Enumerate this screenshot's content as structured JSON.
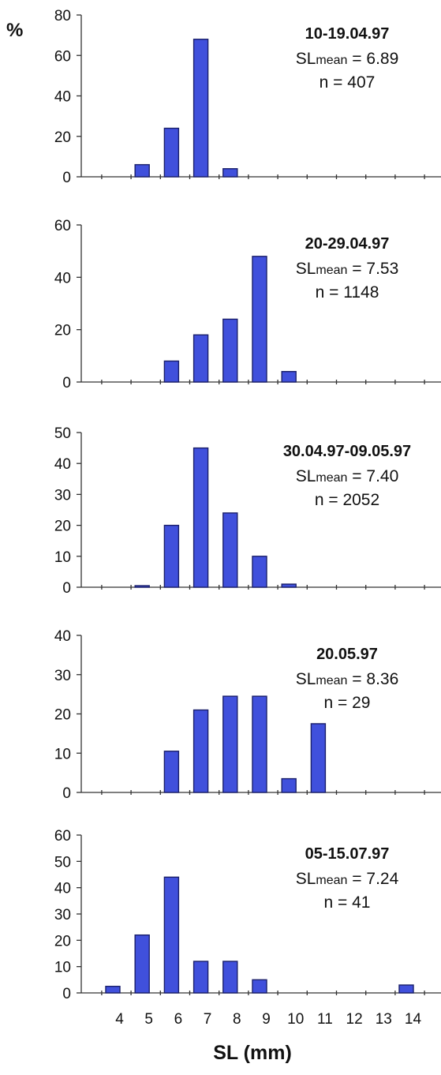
{
  "y_unit": "%",
  "x_axis_label": "SL (mm)",
  "colors": {
    "bar_fill": "#4050dc",
    "bar_edge": "#1a1f6a",
    "axis": "#333333"
  },
  "chart_data": [
    {
      "type": "bar",
      "x": [
        4,
        5,
        6,
        7,
        8,
        9,
        10,
        11,
        12,
        13,
        14
      ],
      "values": [
        0,
        6,
        24,
        68,
        4,
        0,
        0,
        0,
        0,
        0,
        0
      ],
      "ylim": [
        0,
        80
      ],
      "yticks": [
        "0",
        "20",
        "40",
        "60",
        "80"
      ],
      "annotation": {
        "title": "10-19.04.97",
        "mean_prefix": "SL",
        "mean_sub": "mean",
        "mean_value": "= 6.89",
        "n": "n = 407"
      },
      "grid": false
    },
    {
      "type": "bar",
      "x": [
        4,
        5,
        6,
        7,
        8,
        9,
        10,
        11,
        12,
        13,
        14
      ],
      "values": [
        0,
        0,
        8,
        18,
        24,
        48,
        4,
        0,
        0,
        0,
        0
      ],
      "ylim": [
        0,
        60
      ],
      "yticks": [
        "0",
        "20",
        "40",
        "60"
      ],
      "annotation": {
        "title": "20-29.04.97",
        "mean_prefix": "SL",
        "mean_sub": "mean",
        "mean_value": "= 7.53",
        "n": "n = 1148"
      },
      "grid": false
    },
    {
      "type": "bar",
      "x": [
        4,
        5,
        6,
        7,
        8,
        9,
        10,
        11,
        12,
        13,
        14
      ],
      "values": [
        0,
        0.5,
        20,
        45,
        24,
        10,
        1,
        0,
        0,
        0,
        0
      ],
      "ylim": [
        0,
        50
      ],
      "yticks": [
        "0",
        "10",
        "20",
        "30",
        "40",
        "50"
      ],
      "annotation": {
        "title": "30.04.97-09.05.97",
        "mean_prefix": "SL",
        "mean_sub": "mean",
        "mean_value": "= 7.40",
        "n": "n = 2052"
      },
      "grid": false
    },
    {
      "type": "bar",
      "x": [
        4,
        5,
        6,
        7,
        8,
        9,
        10,
        11,
        12,
        13,
        14
      ],
      "values": [
        0,
        0,
        10.5,
        21,
        24.5,
        24.5,
        3.5,
        17.5,
        0,
        0,
        0
      ],
      "ylim": [
        0,
        40
      ],
      "yticks": [
        "0",
        "10",
        "20",
        "30",
        "40"
      ],
      "annotation": {
        "title": "20.05.97",
        "mean_prefix": "SL",
        "mean_sub": "mean",
        "mean_value": "= 8.36",
        "n": "n = 29"
      },
      "grid": false
    },
    {
      "type": "bar",
      "x": [
        4,
        5,
        6,
        7,
        8,
        9,
        10,
        11,
        12,
        13,
        14
      ],
      "values": [
        2.5,
        22,
        44,
        12,
        12,
        5,
        0,
        0,
        0,
        0,
        3
      ],
      "ylim": [
        0,
        60
      ],
      "yticks": [
        "0",
        "10",
        "20",
        "30",
        "40",
        "50",
        "60"
      ],
      "xticklabels": [
        "4",
        "5",
        "6",
        "7",
        "8",
        "9",
        "10",
        "11",
        "12",
        "13",
        "14"
      ],
      "annotation": {
        "title": "05-15.07.97",
        "mean_prefix": "SL",
        "mean_sub": "mean",
        "mean_value": "= 7.24",
        "n": "n = 41"
      },
      "grid": false
    }
  ]
}
